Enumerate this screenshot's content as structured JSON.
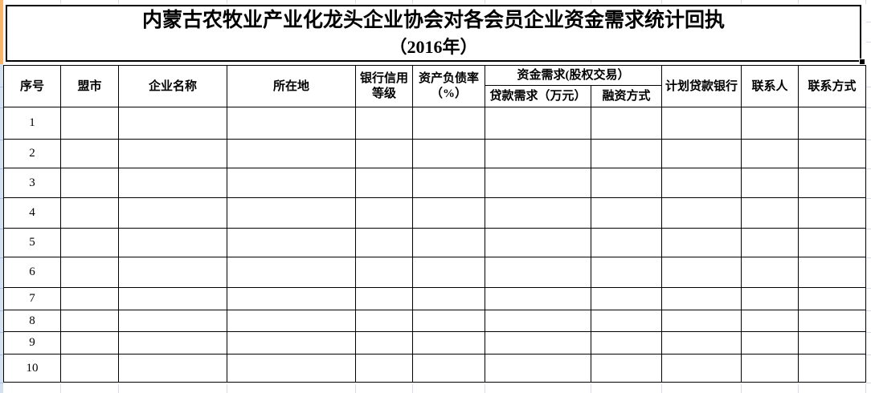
{
  "title": {
    "line1": "内蒙古农牧业产业化龙头企业协会对各会员企业资金需求统计回执",
    "line2": "（2016年）"
  },
  "header": {
    "xuhao": "序号",
    "mengshi": "盟市",
    "qiye_mingcheng": "企业名称",
    "suozaidi": "所在地",
    "yinhang_xinyong_dengji": "银行信用等级",
    "zichan_fuzhailv": "资产负债率（%）",
    "zijin_xuqiu_group": "资金需求(股权交易）",
    "daikuan_xuqiu": "贷款需求（万元）",
    "rongzi_fangshi": "融资方式",
    "jihua_daikuan_yinhang": "计划贷款银行",
    "lianxiren": "联系人",
    "lianxi_fangshi": "联系方式"
  },
  "rows": [
    "1",
    "2",
    "3",
    "4",
    "5",
    "6",
    "7",
    "8",
    "9",
    "10"
  ],
  "colors": {
    "row_header_selected": "#F8B66B",
    "row_header_normal": "#D3E0F0",
    "border": "#000000"
  }
}
